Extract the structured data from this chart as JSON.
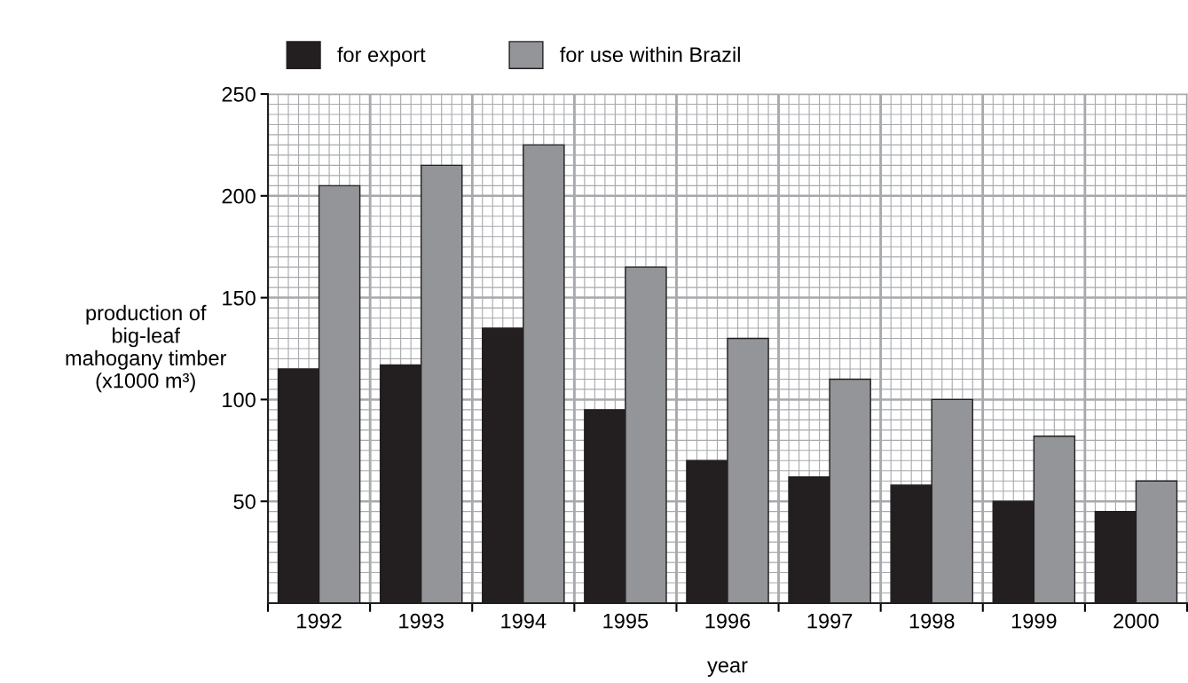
{
  "chart_data": {
    "type": "bar",
    "xlabel": "year",
    "ylabel": "production of\nbig-leaf\nmahogany timber\n(x1000 m³)",
    "categories": [
      "1992",
      "1993",
      "1994",
      "1995",
      "1996",
      "1997",
      "1998",
      "1999",
      "2000"
    ],
    "series": [
      {
        "name": "for export",
        "color": "#231f20",
        "values": [
          115,
          117,
          135,
          95,
          70,
          62,
          58,
          50,
          45
        ]
      },
      {
        "name": "for use within Brazil",
        "color": "#939598",
        "values": [
          205,
          215,
          225,
          165,
          130,
          110,
          100,
          82,
          60
        ]
      }
    ],
    "ylim": [
      0,
      250
    ],
    "yticks": [
      50,
      100,
      150,
      200,
      250
    ],
    "grid": true,
    "legend": "top"
  }
}
